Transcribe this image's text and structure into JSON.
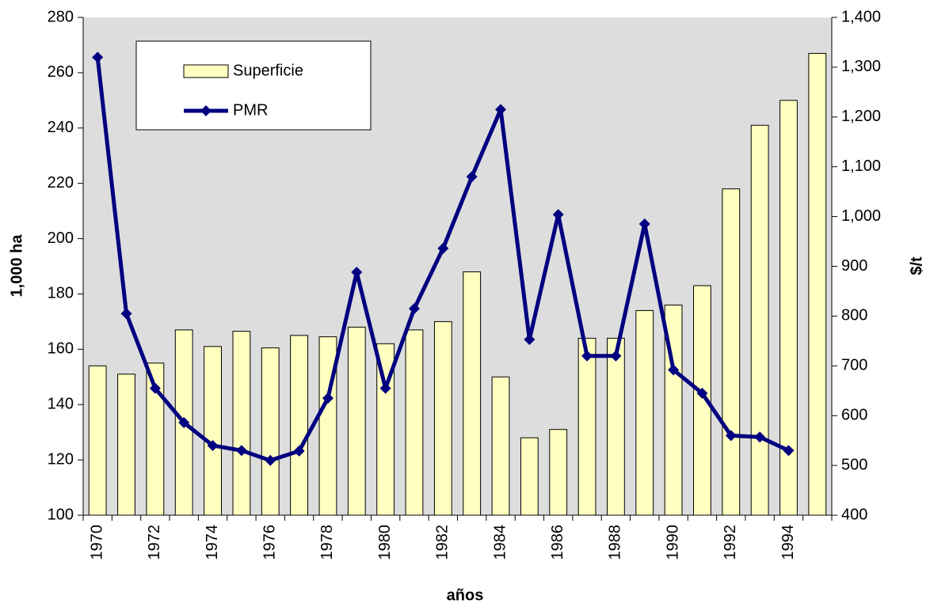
{
  "chart_data": {
    "type": "bar-line",
    "x_label": "años",
    "y_label": "1,000 ha",
    "y2_label": "$/t",
    "categories": [
      "1970",
      null,
      "1972",
      null,
      "1974",
      null,
      "1976",
      null,
      "1978",
      null,
      "1980",
      null,
      "1982",
      null,
      "1984",
      null,
      "1986",
      null,
      "1988",
      null,
      "1990",
      null,
      "1992",
      null,
      "1994",
      null
    ],
    "series": [
      {
        "name": "Superficie",
        "type": "bar",
        "color": "#ffffc0",
        "values": [
          154,
          151,
          155,
          167,
          161,
          166.5,
          160.5,
          165,
          164.5,
          168,
          162,
          167,
          170,
          188,
          150,
          128,
          131,
          164,
          164,
          174,
          176,
          183,
          218,
          241,
          250,
          267
        ]
      },
      {
        "name": "PMR",
        "type": "line",
        "axis": "y2",
        "color": "#000080",
        "values": [
          1320,
          805,
          655,
          586,
          540,
          530,
          510,
          529,
          635,
          888,
          655,
          815,
          936,
          1080,
          1215,
          753,
          1004,
          720,
          720,
          985,
          692,
          645,
          560,
          557,
          530,
          null
        ]
      }
    ],
    "ylim": [
      100,
      280
    ],
    "yticks": [
      100,
      120,
      140,
      160,
      180,
      200,
      220,
      240,
      260,
      280
    ],
    "y2lim": [
      400,
      1400
    ],
    "y2ticks": [
      400,
      500,
      600,
      700,
      800,
      900,
      {
        "value": 1000,
        "label": "1,000"
      },
      {
        "value": 1100,
        "label": "1,100"
      },
      {
        "value": 1200,
        "label": "1,200"
      },
      {
        "value": 1300,
        "label": "1,300"
      },
      {
        "value": 1400,
        "label": "1,400"
      }
    ],
    "legend": "top-left"
  }
}
